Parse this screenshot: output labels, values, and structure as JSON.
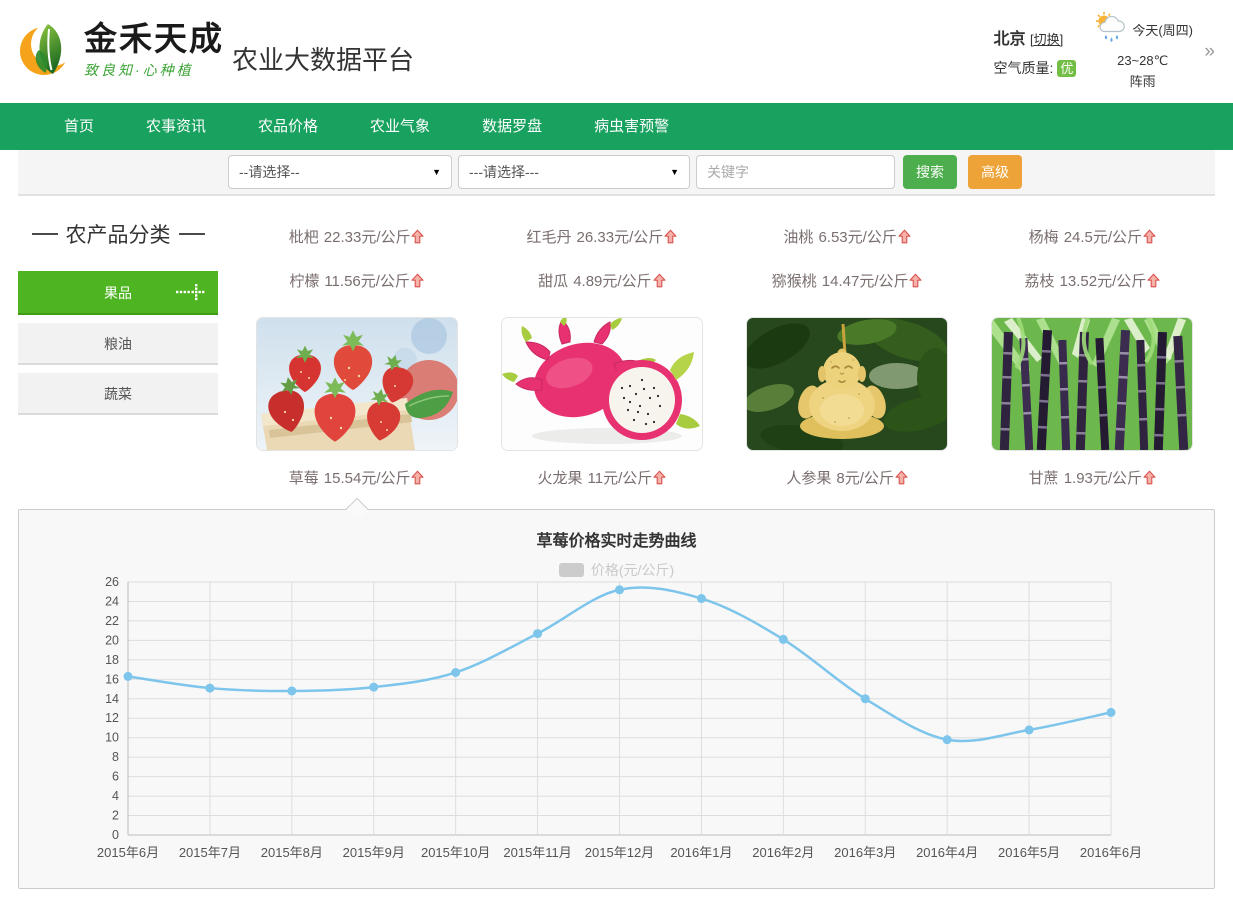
{
  "header": {
    "logo_title": "金禾天成",
    "logo_slogan": "致良知·心种植",
    "site_title": "农业大数据平台",
    "city": "北京",
    "switch_label": "[切换]",
    "air_quality_label": "空气质量:",
    "air_quality_value": "优",
    "weather_day": "今天(周四)",
    "weather_temp": "23~28℃",
    "weather_desc": "阵雨",
    "more_arrow": "»"
  },
  "nav": {
    "items": [
      "首页",
      "农事资讯",
      "农品价格",
      "农业气象",
      "数据罗盘",
      "病虫害预警"
    ]
  },
  "search": {
    "select1": "--请选择--",
    "select2": "---请选择---",
    "keyword_placeholder": "关键字",
    "search_label": "搜索",
    "advanced_label": "高级"
  },
  "sidebar": {
    "title": "农产品分类",
    "active_item": "果品",
    "items": [
      "果品",
      "粮油",
      "蔬菜"
    ]
  },
  "price_list": [
    {
      "name": "枇杷",
      "price": "22.33",
      "unit": "元/公斤",
      "trend": "up"
    },
    {
      "name": "红毛丹",
      "price": "26.33",
      "unit": "元/公斤",
      "trend": "up"
    },
    {
      "name": "油桃",
      "price": "6.53",
      "unit": "元/公斤",
      "trend": "up"
    },
    {
      "name": "杨梅",
      "price": "24.5",
      "unit": "元/公斤",
      "trend": "up"
    },
    {
      "name": "柠檬",
      "price": "11.56",
      "unit": "元/公斤",
      "trend": "up"
    },
    {
      "name": "甜瓜",
      "price": "4.89",
      "unit": "元/公斤",
      "trend": "up"
    },
    {
      "name": "猕猴桃",
      "price": "14.47",
      "unit": "元/公斤",
      "trend": "up"
    },
    {
      "name": "荔枝",
      "price": "13.52",
      "unit": "元/公斤",
      "trend": "up"
    }
  ],
  "products": [
    {
      "name": "草莓",
      "price": "15.54",
      "unit": "元/公斤",
      "trend": "up",
      "image": "strawberry"
    },
    {
      "name": "火龙果",
      "price": "11",
      "unit": "元/公斤",
      "trend": "up",
      "image": "dragon-fruit"
    },
    {
      "name": "人参果",
      "price": "8",
      "unit": "元/公斤",
      "trend": "up",
      "image": "ginseng-fruit"
    },
    {
      "name": "甘蔗",
      "price": "1.93",
      "unit": "元/公斤",
      "trend": "up",
      "image": "sugar-cane"
    }
  ],
  "chart_data": {
    "type": "line",
    "title": "草莓价格实时走势曲线",
    "legend": "价格(元/公斤)",
    "legend_position": "top",
    "categories": [
      "2015年6月",
      "2015年7月",
      "2015年8月",
      "2015年9月",
      "2015年10月",
      "2015年11月",
      "2015年12月",
      "2016年1月",
      "2016年2月",
      "2016年3月",
      "2016年4月",
      "2016年5月",
      "2016年6月"
    ],
    "values": [
      16.3,
      15.1,
      14.8,
      15.2,
      16.7,
      20.7,
      25.2,
      24.3,
      20.1,
      14.0,
      9.8,
      10.8,
      12.6
    ],
    "ylim": [
      0,
      26
    ],
    "ytick_step": 2,
    "grid": true,
    "smooth": true,
    "line_color": "#7dc5eb"
  },
  "colors": {
    "nav_green": "#18a15f",
    "active_category_green": "#4fb422",
    "search_button_green": "#4cae4c",
    "advanced_button_orange": "#eda338",
    "aqi_badge_green": "#71bf45",
    "price_up_red": "#d9534f"
  }
}
